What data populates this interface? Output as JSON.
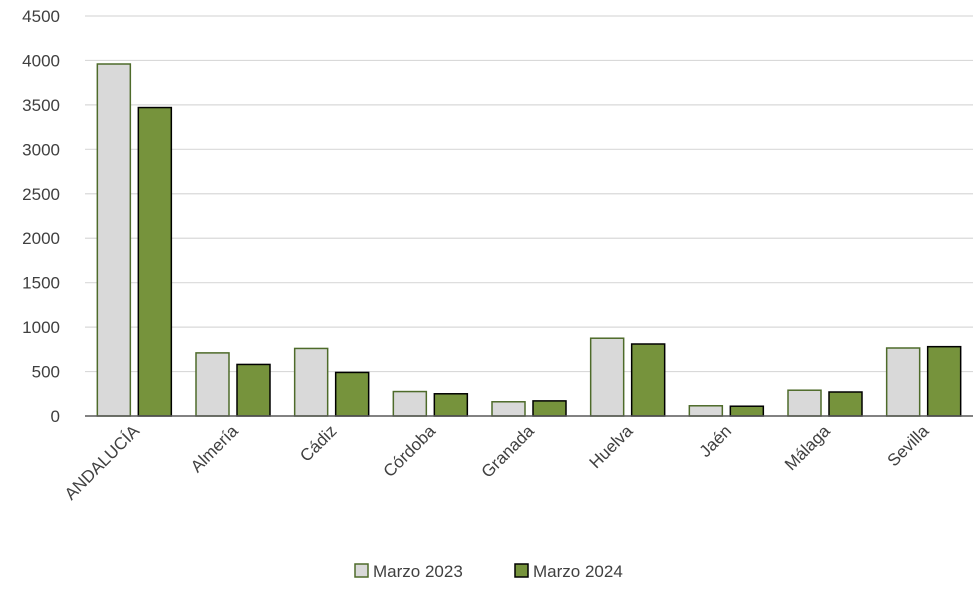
{
  "colors": {
    "background": "#ffffff",
    "gridline": "#d9d9d9",
    "axis_line": "#595959",
    "text": "#404040",
    "series_2023_fill": "#d9d9d9",
    "series_2023_stroke": "#4e6b2a",
    "series_2024_fill": "#76933c",
    "series_2024_stroke": "#000000"
  },
  "chart_data": {
    "type": "bar",
    "title": "",
    "xlabel": "",
    "ylabel": "",
    "ylim": [
      0,
      4500
    ],
    "yticks": [
      0,
      500,
      1000,
      1500,
      2000,
      2500,
      3000,
      3500,
      4000,
      4500
    ],
    "grid": true,
    "legend_position": "bottom",
    "categories": [
      "ANDALUCÍA",
      "Almería",
      "Cádiz",
      "Córdoba",
      "Granada",
      "Huelva",
      "Jaén",
      "Málaga",
      "Sevilla"
    ],
    "series": [
      {
        "name": "Marzo 2023",
        "values": [
          3960,
          710,
          760,
          275,
          160,
          875,
          115,
          290,
          765
        ]
      },
      {
        "name": "Marzo 2024",
        "values": [
          3470,
          580,
          490,
          250,
          170,
          810,
          110,
          270,
          780
        ]
      }
    ]
  }
}
